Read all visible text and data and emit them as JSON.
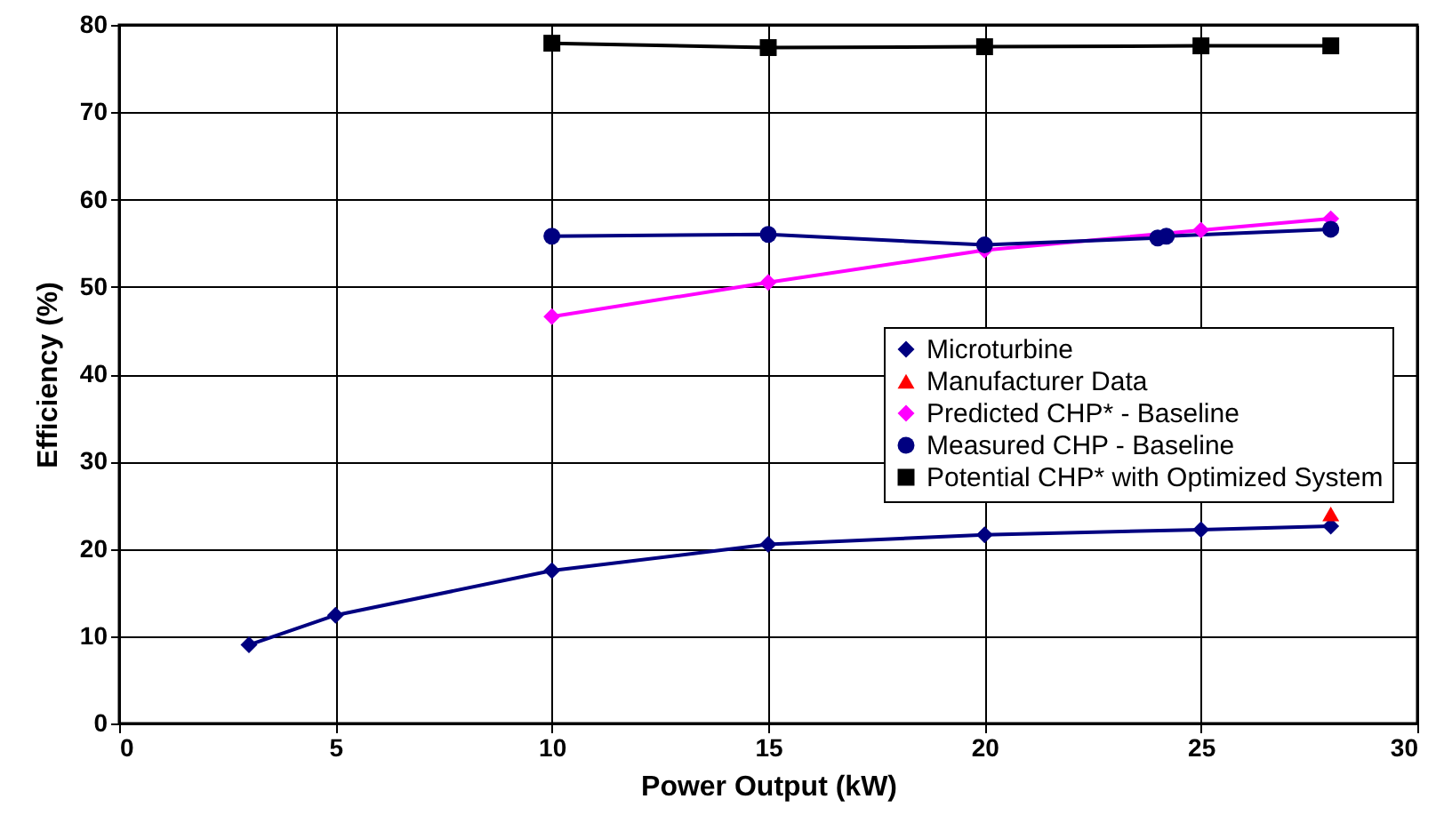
{
  "chart_data": {
    "type": "line",
    "xlabel": "Power Output (kW)",
    "ylabel": "Efficiency (%)",
    "xlim": [
      0,
      30
    ],
    "xticks": [
      0,
      5,
      10,
      15,
      20,
      25,
      30
    ],
    "ylim": [
      0,
      80
    ],
    "yticks": [
      0,
      10,
      20,
      30,
      40,
      50,
      60,
      70,
      80
    ],
    "grid": true,
    "legend": "right",
    "series": [
      {
        "name": "Microturbine",
        "type": "line",
        "marker": "diamond",
        "color": "#000080",
        "x": [
          3,
          5,
          10,
          15,
          20,
          25,
          28
        ],
        "values": [
          9,
          12.4,
          17.5,
          20.5,
          21.6,
          22.2,
          22.6
        ]
      },
      {
        "name": "Manufacturer Data",
        "type": "scatter",
        "marker": "triangle",
        "color": "#ff0000",
        "x": [
          28
        ],
        "values": [
          24
        ]
      },
      {
        "name": "Predicted CHP* - Baseline",
        "type": "line",
        "marker": "diamond",
        "color": "#ff00ff",
        "x": [
          10,
          15,
          20,
          25,
          28
        ],
        "values": [
          46.6,
          50.5,
          54.2,
          56.5,
          57.8
        ]
      },
      {
        "name": "Measured CHP - Baseline",
        "type": "line",
        "marker": "circle",
        "color": "#000080",
        "x": [
          10,
          15,
          20,
          24,
          24.2,
          28
        ],
        "values": [
          55.8,
          56,
          54.8,
          55.6,
          55.8,
          56.6
        ]
      },
      {
        "name": "Potential CHP* with Optimized System",
        "type": "line",
        "marker": "square",
        "color": "#000000",
        "x": [
          10,
          15,
          20,
          25,
          28
        ],
        "values": [
          77.9,
          77.4,
          77.5,
          77.6,
          77.6
        ]
      }
    ]
  }
}
